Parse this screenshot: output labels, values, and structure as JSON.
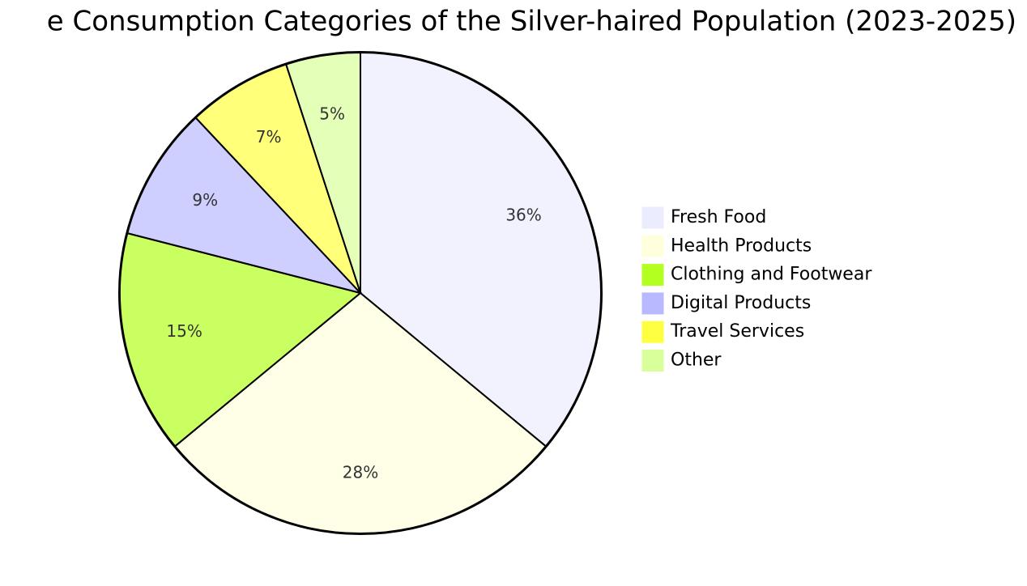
{
  "chart_data": {
    "type": "pie",
    "title": "e Consumption Categories of the Silver-haired Population (2023-2025)",
    "categories": [
      "Fresh Food",
      "Health Products",
      "Clothing and Footwear",
      "Digital Products",
      "Travel Services",
      "Other"
    ],
    "values": [
      36,
      28,
      15,
      9,
      7,
      5
    ],
    "value_labels": [
      "36%",
      "28%",
      "15%",
      "9%",
      "7%",
      "5%"
    ],
    "colors": [
      "#ececff",
      "#ffffde",
      "#b3ff1f",
      "#b9b9ff",
      "#ffff42",
      "#d9ff9a"
    ],
    "legend": "right"
  }
}
